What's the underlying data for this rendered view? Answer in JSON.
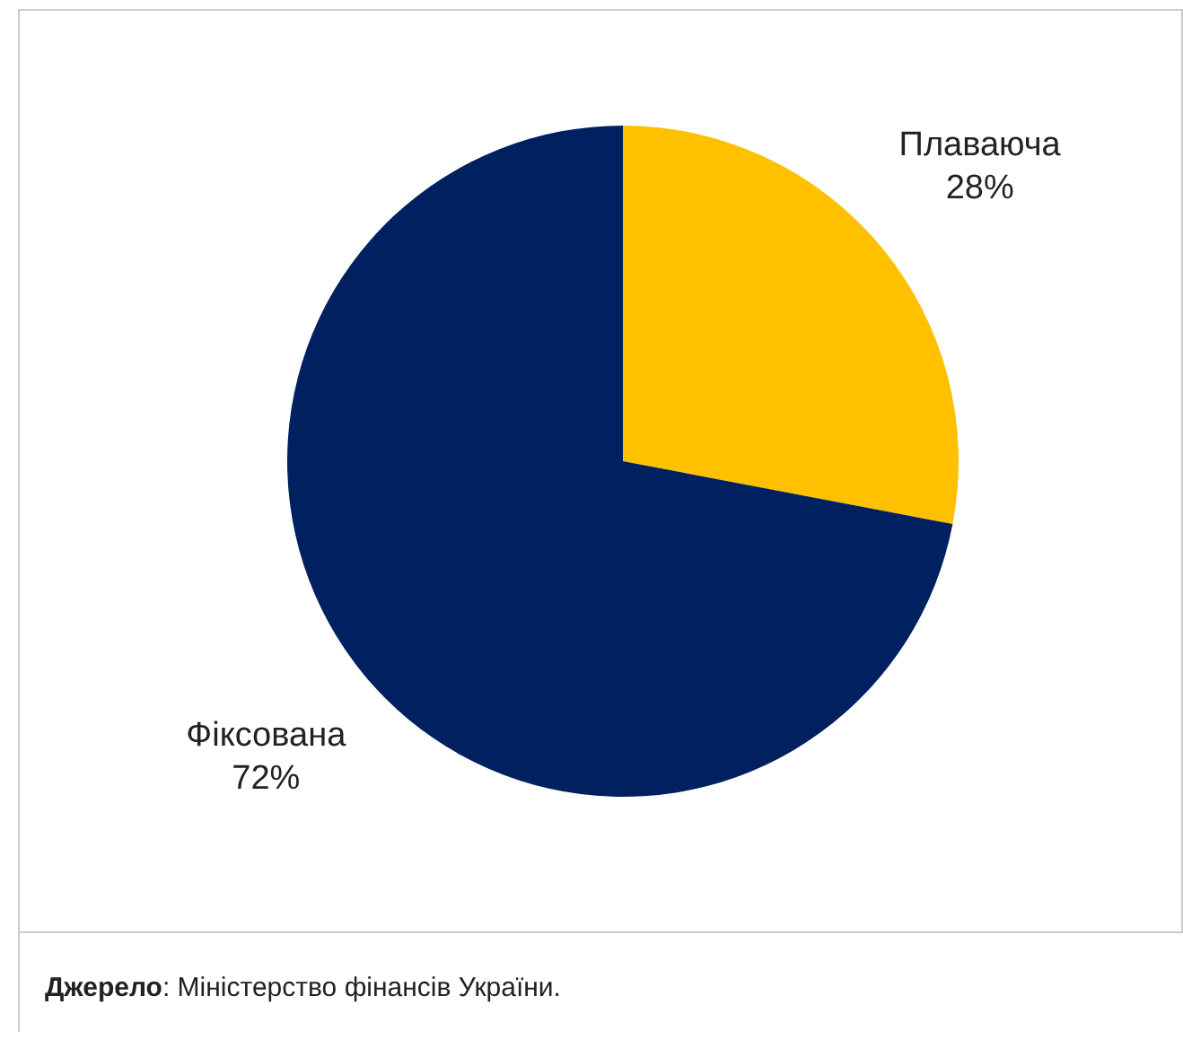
{
  "chart_data": {
    "type": "pie",
    "categories": [
      "Плаваюча",
      "Фіксована"
    ],
    "values": [
      28,
      72
    ],
    "colors": [
      "#ffc000",
      "#002060"
    ],
    "value_labels": [
      "28%",
      "72%"
    ],
    "legend": false,
    "annotations": [
      "Джерело: Міністерство фінансів України."
    ]
  }
}
